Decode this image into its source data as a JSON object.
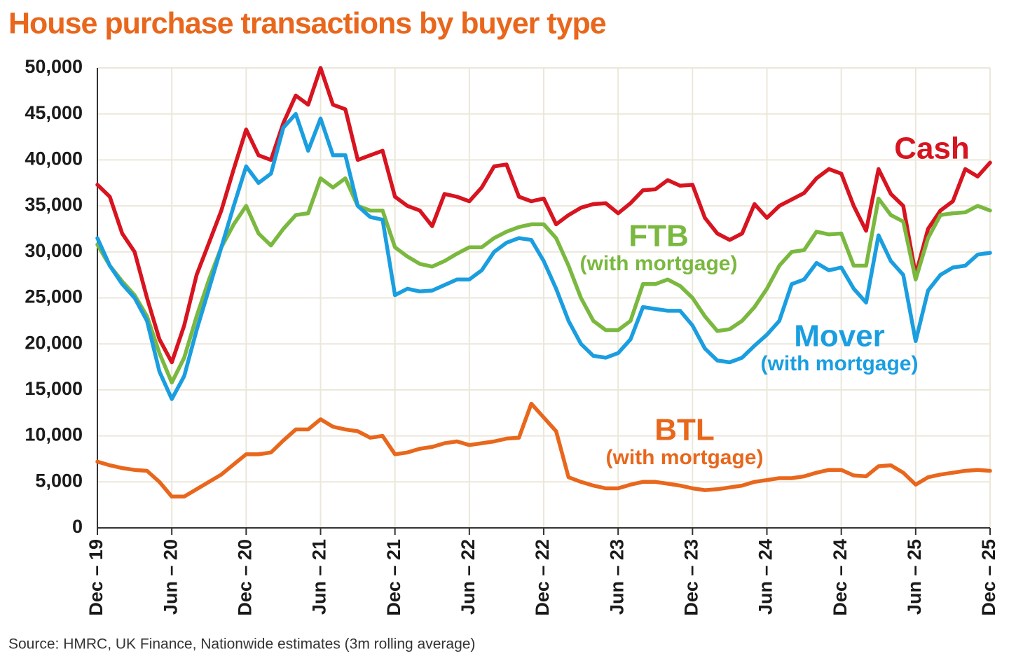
{
  "chart_data": {
    "type": "line",
    "title": "House purchase transactions by buyer type",
    "source": "Source: HMRC, UK Finance, Nationwide estimates (3m rolling average)",
    "categories": [
      "Dec – 19",
      null,
      null,
      null,
      null,
      null,
      "Jun – 20",
      null,
      null,
      null,
      null,
      null,
      "Dec – 20",
      null,
      null,
      null,
      null,
      null,
      "Jun – 21",
      null,
      null,
      null,
      null,
      null,
      "Dec – 21",
      null,
      null,
      null,
      null,
      null,
      "Jun – 22",
      null,
      null,
      null,
      null,
      null,
      "Dec – 22",
      null,
      null,
      null,
      null,
      null,
      "Jun – 23",
      null,
      null,
      null,
      null,
      null,
      "Dec – 23",
      null,
      null,
      null,
      null,
      null,
      "Jun – 24",
      null,
      null,
      null,
      null,
      null,
      "Dec – 24",
      null,
      null,
      null,
      null,
      null,
      "Jun – 25",
      null,
      null,
      null,
      null,
      null,
      "Dec – 25"
    ],
    "ylim": [
      0,
      50000
    ],
    "yticks": [
      0,
      {
        "value": 5000,
        "label": "5,000"
      },
      {
        "value": 10000,
        "label": "10,000"
      },
      {
        "value": 15000,
        "label": "15,000"
      },
      {
        "value": 20000,
        "label": "20,000"
      },
      {
        "value": 25000,
        "label": "25,000"
      },
      {
        "value": 30000,
        "label": "30,000"
      },
      {
        "value": 35000,
        "label": "35,000"
      },
      {
        "value": 40000,
        "label": "40,000"
      },
      {
        "value": 45000,
        "label": "45,000"
      },
      {
        "value": 50000,
        "label": "50,000"
      }
    ],
    "grid": true,
    "series": [
      {
        "name": "Cash",
        "color": "#d7141f",
        "values": [
          37300,
          36000,
          32000,
          30000,
          25000,
          20500,
          18000,
          22000,
          27500,
          31000,
          34500,
          39000,
          43300,
          40500,
          40000,
          44000,
          47000,
          46000,
          50000,
          46000,
          45500,
          40000,
          40500,
          41000,
          36000,
          35000,
          34500,
          32800,
          36300,
          36000,
          35500,
          37000,
          39300,
          39500,
          36000,
          35500,
          35800,
          33000,
          34000,
          34800,
          35200,
          35300,
          34200,
          35300,
          36700,
          36800,
          37800,
          37200,
          37300,
          33700,
          32000,
          31300,
          32000,
          35200,
          33700,
          35000,
          35700,
          36400,
          38000,
          39000,
          38500,
          35000,
          32300,
          39000,
          36300,
          35000,
          27500,
          32500,
          34500,
          35500,
          39000,
          38200,
          39700
        ]
      },
      {
        "name": "FTB",
        "subname": "(with mortgage)",
        "color": "#7ab83f",
        "values": [
          30800,
          28500,
          26800,
          25300,
          23000,
          19000,
          15800,
          18500,
          23000,
          27000,
          30500,
          33000,
          35000,
          32000,
          30700,
          32500,
          34000,
          34200,
          38000,
          37000,
          38000,
          35000,
          34500,
          34500,
          30500,
          29500,
          28700,
          28400,
          29000,
          29800,
          30500,
          30500,
          31500,
          32200,
          32700,
          33000,
          33000,
          31500,
          28500,
          25000,
          22500,
          21500,
          21500,
          22500,
          26500,
          26500,
          27000,
          26300,
          25000,
          23000,
          21400,
          21600,
          22500,
          24000,
          26000,
          28500,
          30000,
          30200,
          32200,
          31900,
          32000,
          28500,
          28500,
          35800,
          34000,
          33300,
          27000,
          31500,
          34000,
          34200,
          34300,
          35000,
          34500
        ]
      },
      {
        "name": "Mover",
        "subname": "(with mortgage)",
        "color": "#1a9ee0",
        "values": [
          31500,
          28500,
          26500,
          25000,
          22500,
          17000,
          14000,
          16500,
          21500,
          26000,
          30500,
          35000,
          39300,
          37500,
          38500,
          43500,
          45000,
          41000,
          44500,
          40500,
          40500,
          35000,
          33800,
          33500,
          25300,
          26000,
          25700,
          25800,
          26400,
          27000,
          27000,
          28000,
          30000,
          31000,
          31500,
          31300,
          29000,
          26000,
          22500,
          20000,
          18700,
          18500,
          19000,
          20500,
          24000,
          23800,
          23600,
          23600,
          22000,
          19500,
          18200,
          18000,
          18500,
          19800,
          21000,
          22500,
          26500,
          27000,
          28800,
          28000,
          28300,
          26000,
          24500,
          31800,
          29000,
          27500,
          20300,
          25800,
          27500,
          28300,
          28500,
          29700,
          29900
        ]
      },
      {
        "name": "BTL",
        "subname": "(with mortgage)",
        "color": "#e8671c",
        "values": [
          7200,
          6800,
          6500,
          6300,
          6200,
          5000,
          3400,
          3400,
          4200,
          5000,
          5800,
          6900,
          8000,
          8000,
          8200,
          9500,
          10700,
          10700,
          11800,
          11000,
          10700,
          10500,
          9800,
          10000,
          8000,
          8200,
          8600,
          8800,
          9200,
          9400,
          9000,
          9200,
          9400,
          9700,
          9800,
          13500,
          12000,
          10500,
          5500,
          5000,
          4600,
          4300,
          4300,
          4700,
          5000,
          5000,
          4800,
          4600,
          4300,
          4100,
          4200,
          4400,
          4600,
          5000,
          5200,
          5400,
          5400,
          5600,
          6000,
          6300,
          6300,
          5700,
          5600,
          6700,
          6800,
          6000,
          4700,
          5500,
          5800,
          6000,
          6200,
          6300,
          6200
        ]
      }
    ]
  }
}
